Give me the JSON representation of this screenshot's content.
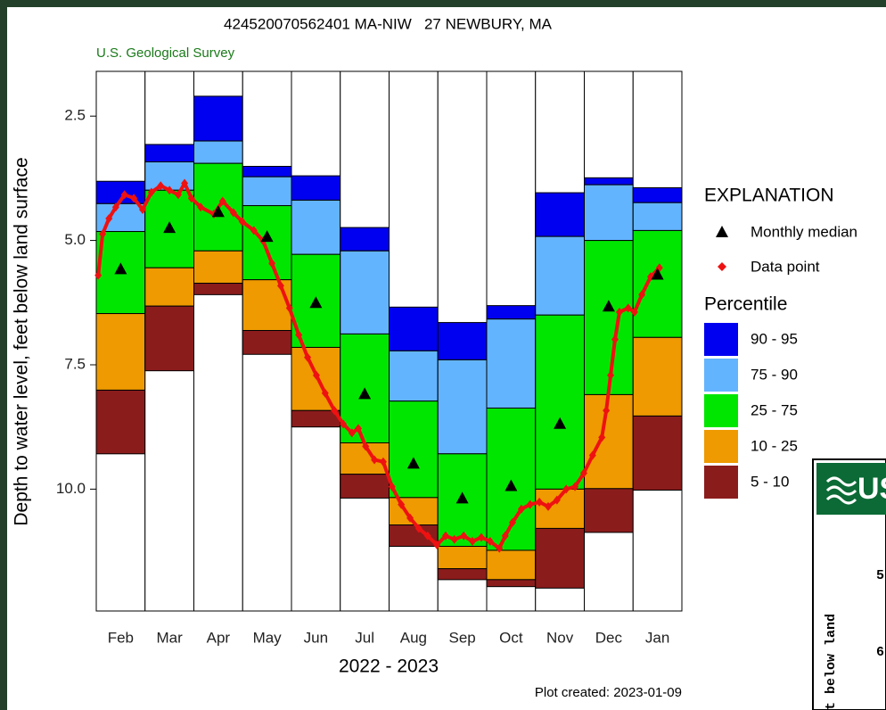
{
  "chart_data": {
    "type": "percentile_bar",
    "title": "424520070562401 MA-NIW   27 NEWBURY, MA",
    "subtitle": "U.S. Geological Survey",
    "y_label": "Depth to water level, feet below land surface",
    "x_label": "2022 - 2023",
    "note": "Plot created: 2023-01-09",
    "categories": [
      "Feb",
      "Mar",
      "Apr",
      "May",
      "Jun",
      "Jul",
      "Aug",
      "Sep",
      "Oct",
      "Nov",
      "Dec",
      "Jan"
    ],
    "ylim": [
      1.6,
      12.45
    ],
    "y_inverted": true,
    "yticks": [
      2.5,
      {
        "value": 5,
        "label": "5.0"
      },
      7.5,
      {
        "value": 10,
        "label": "10.0"
      }
    ],
    "xlim": [
      0,
      12
    ],
    "legend_title": "EXPLANATION",
    "percentile_title": "Percentile",
    "series": [
      {
        "name": "90 - 95",
        "color": "#0000f0",
        "values": [
          3.81,
          3.07,
          2.1,
          3.51,
          3.7,
          4.74,
          6.34,
          6.65,
          6.31,
          4.04,
          3.74,
          3.94
        ]
      },
      {
        "name": "75 - 90",
        "color": "#63b4ff",
        "values": [
          4.26,
          3.42,
          3.0,
          3.72,
          4.19,
          5.21,
          7.22,
          7.4,
          6.58,
          4.92,
          3.88,
          4.24
        ]
      },
      {
        "name": "25 - 75",
        "color": "#00e600",
        "values": [
          4.82,
          3.99,
          3.45,
          4.3,
          5.28,
          6.88,
          8.23,
          9.29,
          8.37,
          6.5,
          5.0,
          4.8
        ]
      },
      {
        "name": "10 - 25",
        "color": "#ee9a00",
        "values": [
          6.47,
          5.55,
          5.21,
          5.79,
          7.15,
          9.07,
          10.17,
          11.15,
          11.23,
          10.0,
          8.1,
          6.95
        ]
      },
      {
        "name": "5 - 10",
        "color": "#8b1c1c",
        "values": [
          8.01,
          6.32,
          5.86,
          6.81,
          8.42,
          9.7,
          10.72,
          11.6,
          11.82,
          10.79,
          9.99,
          8.53
        ]
      }
    ],
    "series_floor": [
      9.29,
      7.62,
      6.09,
      7.29,
      8.75,
      10.18,
      11.15,
      11.82,
      11.96,
      11.99,
      10.87,
      10.02
    ],
    "median": {
      "name": "Monthly median",
      "color": "#000000",
      "values": [
        5.57,
        4.74,
        4.42,
        4.92,
        6.25,
        8.08,
        9.48,
        10.18,
        9.93,
        8.68,
        6.32,
        5.68
      ]
    },
    "points": {
      "name": "Data point",
      "color": "#ee1111",
      "x": [
        0.04,
        0.13,
        0.26,
        0.4,
        0.58,
        0.77,
        0.95,
        1.13,
        1.32,
        1.5,
        1.68,
        1.81,
        1.95,
        2.14,
        2.41,
        2.59,
        2.81,
        2.99,
        3.23,
        3.42,
        3.6,
        3.78,
        3.96,
        4.15,
        4.33,
        4.51,
        4.69,
        4.88,
        5.06,
        5.24,
        5.37,
        5.52,
        5.7,
        5.88,
        6.06,
        6.25,
        6.43,
        6.61,
        6.79,
        6.98,
        7.16,
        7.34,
        7.53,
        7.71,
        7.89,
        8.07,
        8.26,
        8.38,
        8.53,
        8.71,
        8.89,
        9.08,
        9.26,
        9.44,
        9.63,
        9.81,
        9.99,
        10.17,
        10.36,
        10.45,
        10.54,
        10.63,
        10.72,
        10.9,
        11.03,
        11.18,
        11.36,
        11.54
      ],
      "values": [
        5.7,
        4.87,
        4.56,
        4.33,
        4.08,
        4.15,
        4.38,
        4.03,
        3.9,
        3.99,
        4.08,
        3.85,
        4.15,
        4.33,
        4.47,
        4.21,
        4.44,
        4.62,
        4.8,
        5.01,
        5.46,
        5.91,
        6.36,
        6.9,
        7.35,
        7.71,
        8.07,
        8.42,
        8.69,
        8.87,
        8.78,
        9.14,
        9.41,
        9.45,
        9.95,
        10.31,
        10.58,
        10.79,
        10.94,
        11.12,
        10.94,
        11.01,
        10.94,
        11.05,
        10.97,
        11.05,
        11.19,
        10.94,
        10.67,
        10.4,
        10.31,
        10.26,
        10.35,
        10.22,
        10.0,
        9.95,
        9.68,
        9.32,
        8.96,
        8.42,
        7.71,
        6.99,
        6.44,
        6.36,
        6.44,
        6.09,
        5.73,
        5.55
      ]
    }
  },
  "other_panel": {
    "logo": "US",
    "ticks": [
      "5",
      "6"
    ],
    "label": "t below land"
  }
}
